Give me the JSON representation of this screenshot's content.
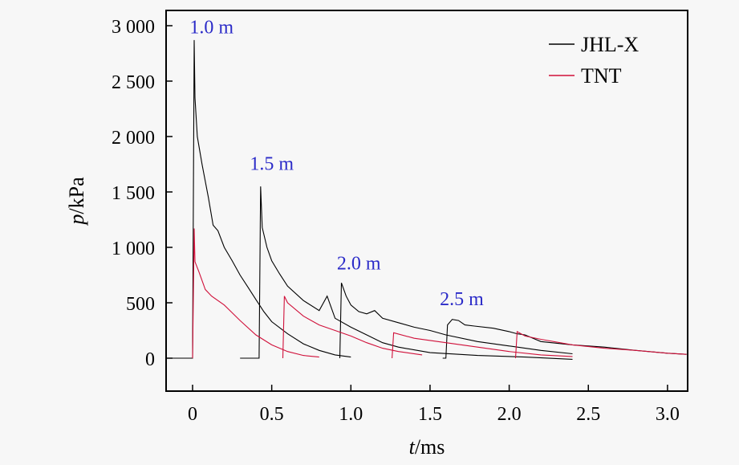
{
  "chart_data": {
    "type": "line",
    "xlabel_italic": "t",
    "xlabel_unit": "/ms",
    "ylabel_italic": "p",
    "ylabel_unit": "/kPa",
    "xlim": [
      -0.16,
      3.12
    ],
    "ylim": [
      -280,
      3100
    ],
    "xticks": [
      0,
      0.5,
      1.0,
      1.5,
      2.0,
      2.5,
      3.0
    ],
    "xtick_labels": [
      "0",
      "0.5",
      "1.0",
      "1.5",
      "2.0",
      "2.5",
      "3.0"
    ],
    "yticks": [
      0,
      500,
      1000,
      1500,
      2000,
      2500,
      3000
    ],
    "ytick_labels": [
      "0",
      "500",
      "1 000",
      "1 500",
      "2 000",
      "2 500",
      "3 000"
    ],
    "legend_position": "top-right",
    "grid": false,
    "annotations": [
      {
        "text": "1.0 m",
        "x": 0.12,
        "y": 2930
      },
      {
        "text": "1.5 m",
        "x": 0.5,
        "y": 1700
      },
      {
        "text": "2.0 m",
        "x": 1.05,
        "y": 800
      },
      {
        "text": "2.5 m",
        "x": 1.7,
        "y": 480
      }
    ],
    "annotation_color": "#2b2bc8",
    "series": [
      {
        "name": "JHL-X",
        "color": "#000000",
        "legend": true,
        "curves": [
          [
            [
              -0.16,
              0
            ],
            [
              0,
              0
            ],
            [
              0.01,
              2870
            ],
            [
              0.015,
              2350
            ],
            [
              0.03,
              2000
            ],
            [
              0.06,
              1750
            ],
            [
              0.1,
              1450
            ],
            [
              0.13,
              1200
            ],
            [
              0.16,
              1150
            ],
            [
              0.2,
              1000
            ],
            [
              0.25,
              880
            ],
            [
              0.3,
              750
            ],
            [
              0.35,
              640
            ],
            [
              0.4,
              530
            ],
            [
              0.45,
              420
            ],
            [
              0.5,
              330
            ],
            [
              0.6,
              220
            ],
            [
              0.7,
              130
            ],
            [
              0.8,
              70
            ],
            [
              0.9,
              30
            ],
            [
              1.0,
              10
            ]
          ],
          [
            [
              0.3,
              0
            ],
            [
              0.42,
              0
            ],
            [
              0.43,
              1550
            ],
            [
              0.44,
              1180
            ],
            [
              0.47,
              1000
            ],
            [
              0.5,
              880
            ],
            [
              0.55,
              760
            ],
            [
              0.6,
              650
            ],
            [
              0.7,
              520
            ],
            [
              0.8,
              430
            ],
            [
              0.85,
              560
            ],
            [
              0.9,
              360
            ],
            [
              1.0,
              280
            ],
            [
              1.1,
              210
            ],
            [
              1.2,
              140
            ],
            [
              1.3,
              100
            ],
            [
              1.5,
              50
            ],
            [
              1.8,
              25
            ],
            [
              2.1,
              10
            ],
            [
              2.4,
              -10
            ]
          ],
          [
            [
              0.93,
              0
            ],
            [
              0.94,
              680
            ],
            [
              0.97,
              560
            ],
            [
              1.0,
              480
            ],
            [
              1.05,
              420
            ],
            [
              1.1,
              400
            ],
            [
              1.15,
              430
            ],
            [
              1.2,
              360
            ],
            [
              1.3,
              320
            ],
            [
              1.4,
              280
            ],
            [
              1.5,
              250
            ],
            [
              1.6,
              210
            ],
            [
              1.8,
              150
            ],
            [
              2.0,
              110
            ],
            [
              2.2,
              70
            ],
            [
              2.4,
              40
            ]
          ],
          [
            [
              1.58,
              0
            ],
            [
              1.6,
              0
            ],
            [
              1.61,
              300
            ],
            [
              1.64,
              350
            ],
            [
              1.68,
              340
            ],
            [
              1.72,
              300
            ],
            [
              1.78,
              290
            ],
            [
              1.9,
              270
            ],
            [
              2.0,
              240
            ],
            [
              2.05,
              220
            ],
            [
              2.1,
              210
            ],
            [
              2.2,
              150
            ],
            [
              2.4,
              120
            ],
            [
              2.6,
              100
            ],
            [
              2.8,
              70
            ],
            [
              3.0,
              45
            ],
            [
              3.12,
              35
            ]
          ]
        ]
      },
      {
        "name": "TNT",
        "color": "#d0103a",
        "legend": true,
        "curves": [
          [
            [
              0,
              0
            ],
            [
              0.01,
              1170
            ],
            [
              0.015,
              870
            ],
            [
              0.04,
              780
            ],
            [
              0.08,
              620
            ],
            [
              0.12,
              560
            ],
            [
              0.2,
              480
            ],
            [
              0.3,
              340
            ],
            [
              0.4,
              210
            ],
            [
              0.5,
              120
            ],
            [
              0.6,
              60
            ],
            [
              0.7,
              25
            ],
            [
              0.8,
              10
            ]
          ],
          [
            [
              0.57,
              0
            ],
            [
              0.58,
              560
            ],
            [
              0.6,
              500
            ],
            [
              0.7,
              380
            ],
            [
              0.8,
              300
            ],
            [
              0.9,
              250
            ],
            [
              1.0,
              200
            ],
            [
              1.1,
              140
            ],
            [
              1.2,
              90
            ],
            [
              1.3,
              60
            ],
            [
              1.45,
              30
            ]
          ],
          [
            [
              1.26,
              0
            ],
            [
              1.27,
              230
            ],
            [
              1.4,
              180
            ],
            [
              1.6,
              140
            ],
            [
              1.8,
              100
            ],
            [
              2.0,
              60
            ],
            [
              2.2,
              30
            ],
            [
              2.4,
              15
            ]
          ],
          [
            [
              2.04,
              0
            ],
            [
              2.05,
              240
            ],
            [
              2.1,
              200
            ],
            [
              2.2,
              170
            ],
            [
              2.4,
              120
            ],
            [
              2.6,
              90
            ],
            [
              2.8,
              70
            ],
            [
              3.0,
              45
            ],
            [
              3.12,
              35
            ]
          ]
        ]
      }
    ]
  }
}
